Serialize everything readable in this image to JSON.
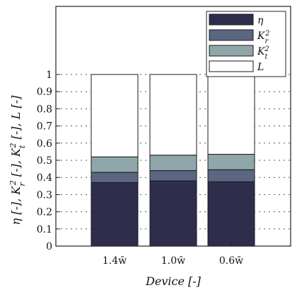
{
  "chart_data": {
    "type": "bar",
    "stacked": true,
    "categories": [
      "1.4w̄",
      "1.0w̄",
      "0.6w̄"
    ],
    "series": [
      {
        "name": "η",
        "values": [
          0.37,
          0.38,
          0.375
        ]
      },
      {
        "name": "Kr²",
        "values": [
          0.06,
          0.06,
          0.07
        ]
      },
      {
        "name": "Kt²",
        "values": [
          0.09,
          0.09,
          0.09
        ]
      },
      {
        "name": "L",
        "values": [
          0.48,
          0.47,
          0.465
        ]
      }
    ],
    "colors": [
      "#2e2e4c",
      "#5b6680",
      "#8fa7aa",
      "#ffffff"
    ],
    "xlabel": "Device [-]",
    "ylabel": "η [-], Kr² [-], Kt² [-], L [-]",
    "yticks": [
      0,
      0.1,
      0.2,
      0.3,
      0.4,
      0.5,
      0.6,
      0.7,
      0.8,
      0.9,
      1
    ],
    "ytick_labels": [
      "0",
      "0.1",
      "0.2",
      "0.3",
      "0.4",
      "0.5",
      "0.6",
      "0.7",
      "0.8",
      "0.9",
      "1"
    ],
    "ylim": [
      0,
      1.4
    ],
    "grid": "dotted horizontal",
    "legend_position": "top-right"
  }
}
